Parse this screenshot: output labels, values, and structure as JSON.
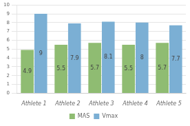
{
  "chart_data": {
    "type": "bar",
    "categories": [
      "Athlete 1",
      "Athlete 2",
      "Athlete 3",
      "Athlete 4",
      "Athlete 5"
    ],
    "series": [
      {
        "name": "MAS",
        "color": "#8fbc72",
        "values": [
          4.9,
          5.5,
          5.7,
          5.5,
          5.7
        ]
      },
      {
        "name": "Vmax",
        "color": "#7bafd4",
        "values": [
          9,
          7.9,
          8.1,
          8,
          7.7
        ]
      }
    ],
    "ylim": [
      0,
      10
    ],
    "yticks": [
      0,
      1,
      2,
      3,
      4,
      5,
      6,
      7,
      8,
      9,
      10
    ],
    "grid": true,
    "legend": "bottom",
    "data_labels": true
  }
}
